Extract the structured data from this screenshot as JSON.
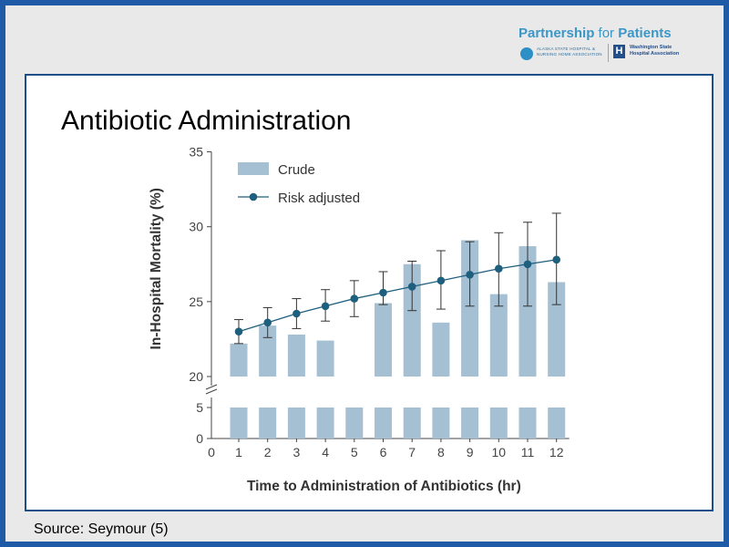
{
  "header": {
    "brand_bold": "Partnership",
    "brand_for": "for",
    "brand_rest": "Patients",
    "logo_left_line1": "ALASKA STATE HOSPITAL &",
    "logo_left_line2": "NURSING HOME ASSOCIATION",
    "logo_right_line1": "Washington State",
    "logo_right_line2": "Hospital Association"
  },
  "slide": {
    "title": "Antibiotic Administration",
    "source": "Source: Seymour (5)"
  },
  "chart_data": {
    "type": "bar",
    "xlabel": "Time to Administration of Antibiotics (hr)",
    "ylabel": "In-Hospital Mortality (%)",
    "x_ticks": [
      "0",
      "1",
      "2",
      "3",
      "4",
      "5",
      "6",
      "7",
      "8",
      "9",
      "10",
      "11",
      "12"
    ],
    "y_ticks_upper": [
      20,
      25,
      30,
      35
    ],
    "y_ticks_lower": [
      0,
      5
    ],
    "ylim_upper": [
      20,
      35
    ],
    "ylim_lower": [
      0,
      5
    ],
    "axis_break": true,
    "bar_color": "#a5bfd3",
    "line_color": "#1f5f7e",
    "series": [
      {
        "name": "Crude",
        "type": "bar",
        "x": [
          1,
          2,
          3,
          4,
          5,
          6,
          7,
          8,
          9,
          10,
          11,
          12
        ],
        "values": [
          22.2,
          23.4,
          22.8,
          22.4,
          17.7,
          24.9,
          27.5,
          23.6,
          29.1,
          25.5,
          28.7,
          26.3
        ]
      },
      {
        "name": "Risk adjusted",
        "type": "line",
        "x": [
          1,
          2,
          3,
          4,
          5,
          6,
          7,
          8,
          9,
          10,
          11,
          12
        ],
        "values": [
          23.0,
          23.6,
          24.2,
          24.7,
          25.2,
          25.6,
          26.0,
          26.4,
          26.8,
          27.2,
          27.5,
          27.8
        ],
        "err_low": [
          22.2,
          22.6,
          23.2,
          23.7,
          24.0,
          24.8,
          24.4,
          24.5,
          24.7,
          24.7,
          24.7,
          24.8
        ],
        "err_high": [
          23.8,
          24.6,
          25.2,
          25.8,
          26.4,
          27.0,
          27.7,
          28.4,
          29.0,
          29.6,
          30.3,
          30.9
        ]
      }
    ],
    "legend_position": "top-left"
  }
}
